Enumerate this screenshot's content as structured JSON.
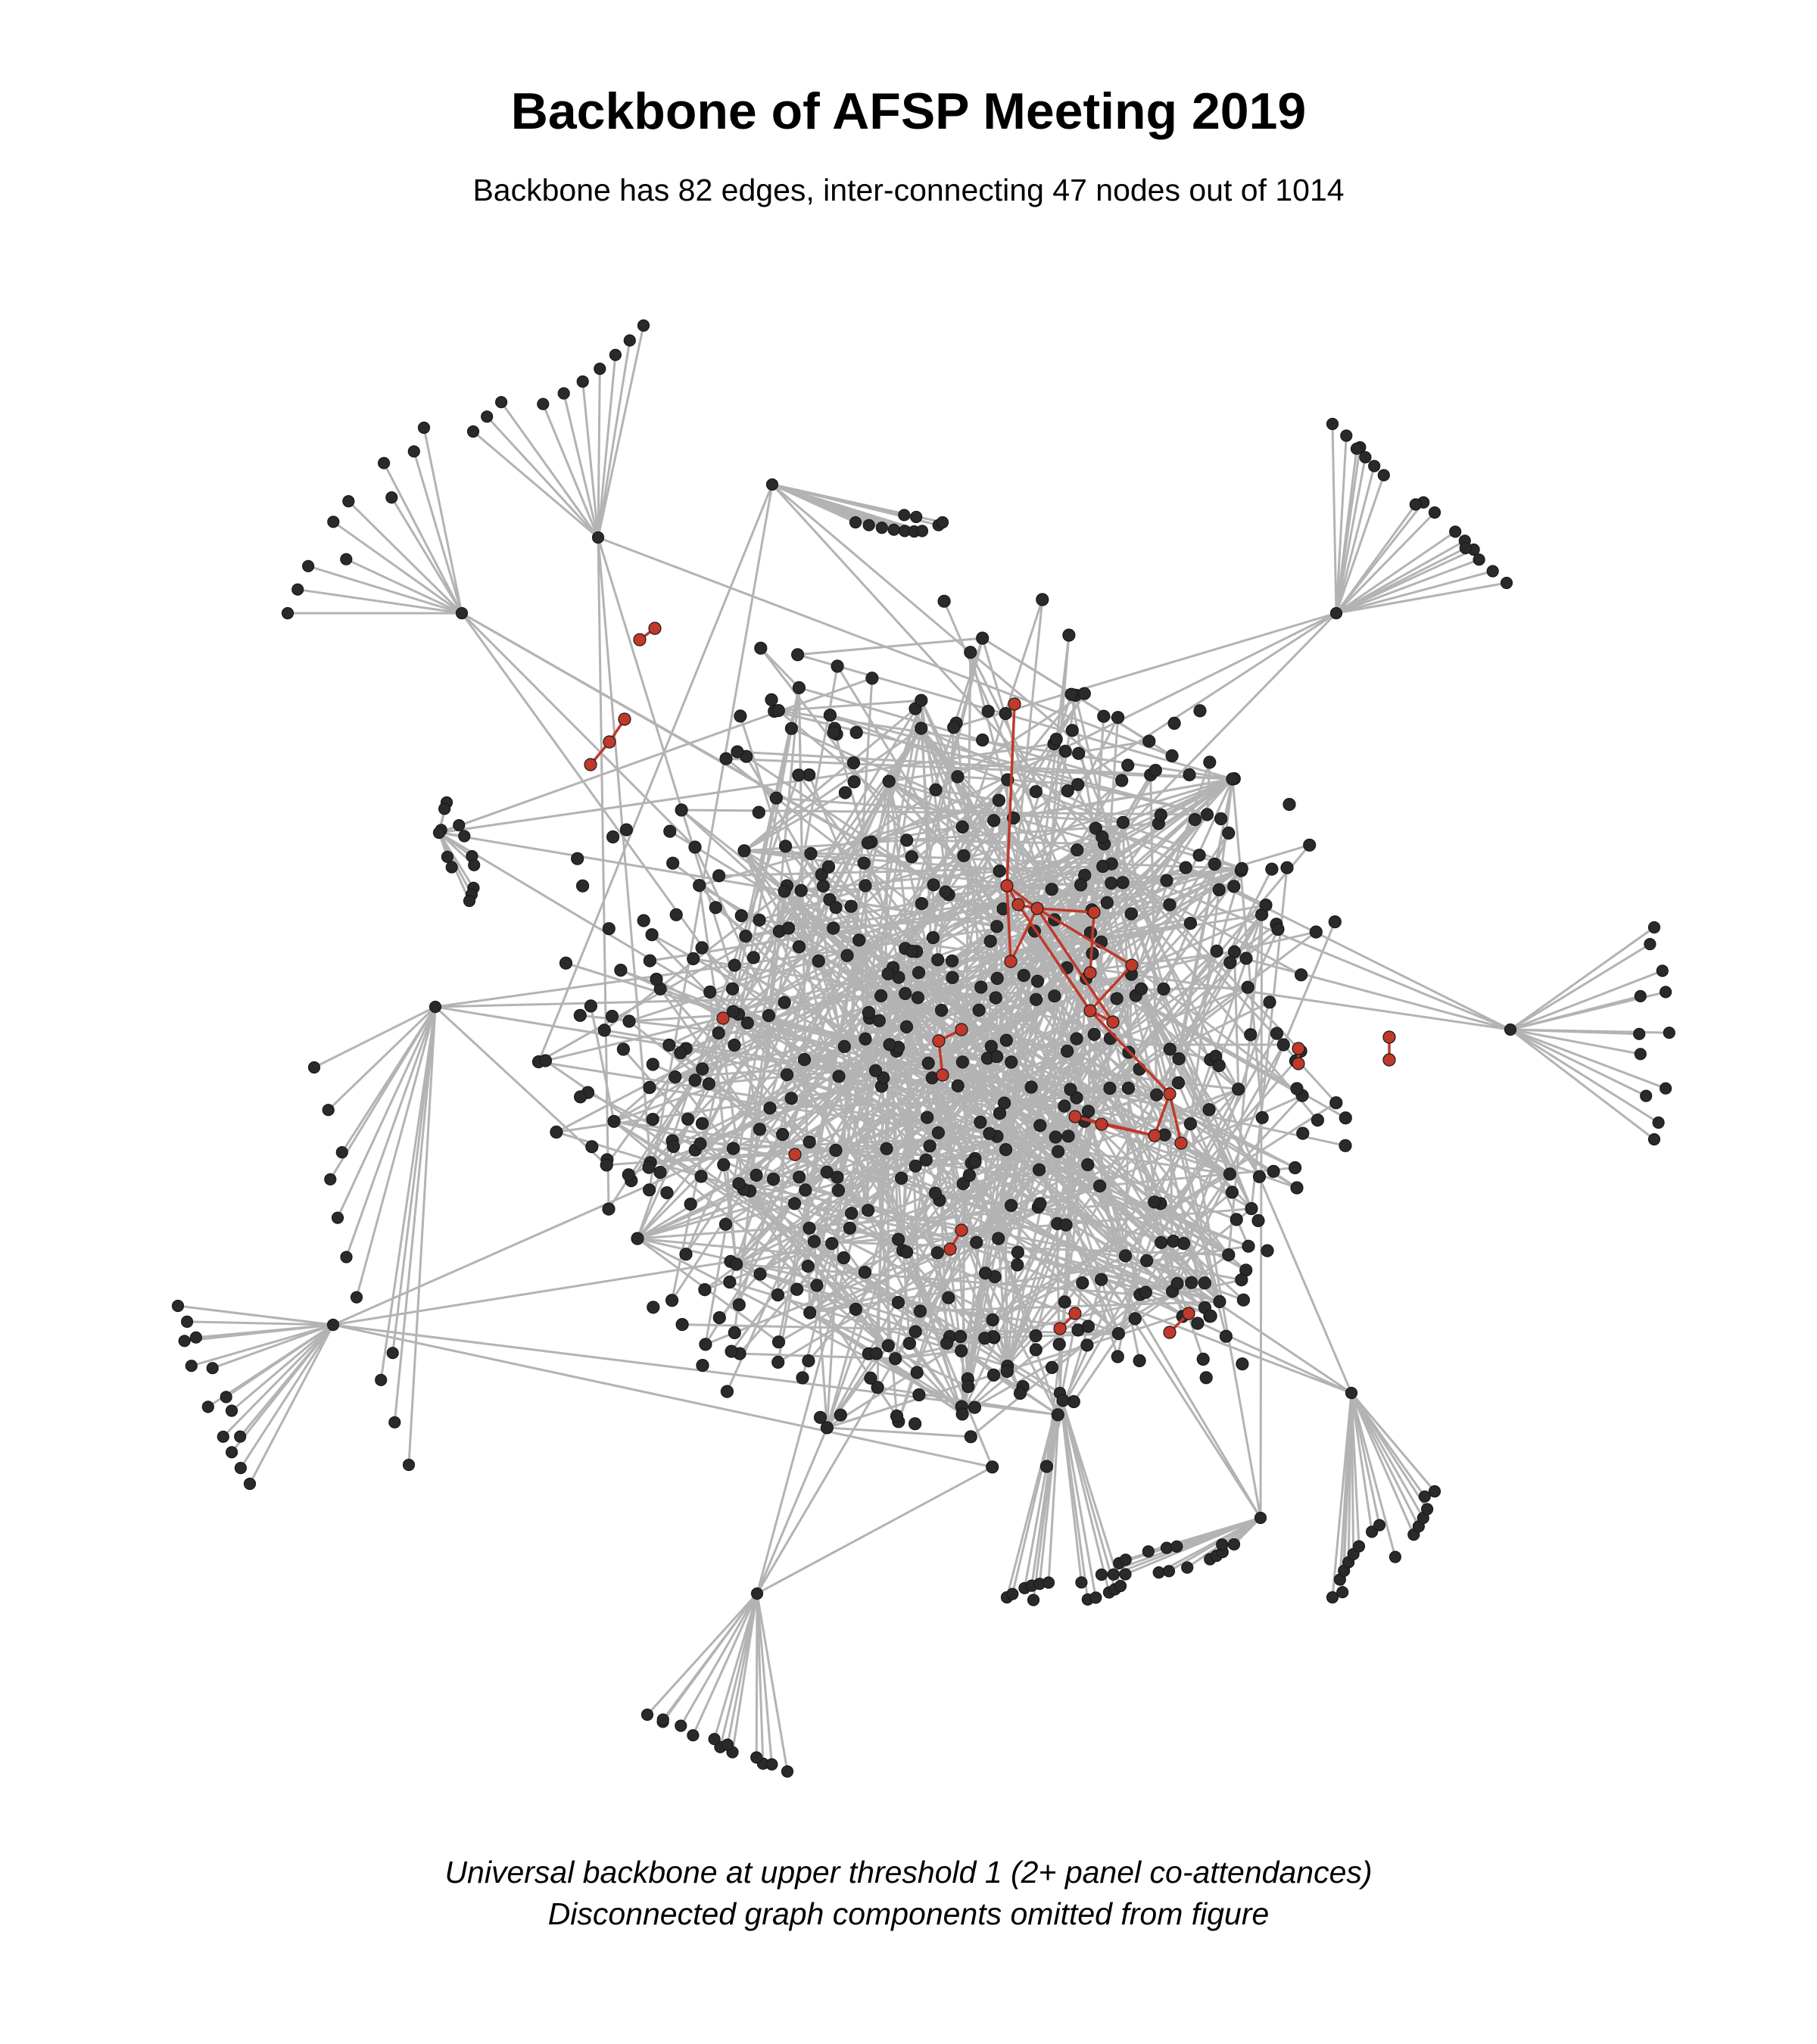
{
  "title": "Backbone of AFSP Meeting 2019",
  "subtitle": "Backbone has 82 edges, inter-connecting 47 nodes out of 1014",
  "caption": {
    "line1": "Universal backbone at upper threshold 1 (2+ panel co-attendances)",
    "line2": "Disconnected graph components omitted from figure"
  },
  "colors": {
    "background": "#ffffff",
    "edge": "#b3b3b3",
    "node": "#2a2a2a",
    "backbone": "#c0392b",
    "text": "#000000"
  },
  "graph": {
    "total_nodes": 1014,
    "backbone_edges": 82,
    "backbone_nodes": 47
  }
}
